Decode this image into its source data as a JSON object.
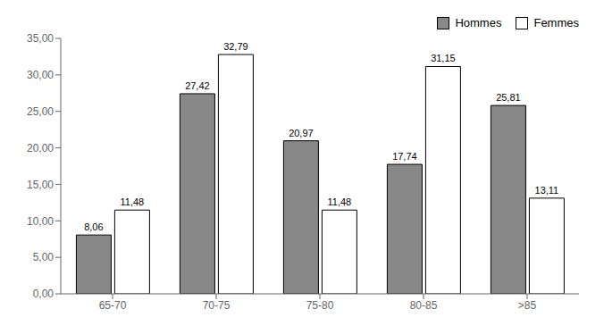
{
  "chart_data": {
    "type": "bar",
    "categories": [
      "65-70",
      "70-75",
      "75-80",
      "80-85",
      ">85"
    ],
    "series": [
      {
        "name": "Hommes",
        "color": "#888888",
        "values": [
          8.06,
          27.42,
          20.97,
          17.74,
          25.81
        ],
        "value_labels": [
          "8,06",
          "27,42",
          "20,97",
          "17,74",
          "25,81"
        ]
      },
      {
        "name": "Femmes",
        "color": "#ffffff",
        "values": [
          11.48,
          32.79,
          11.48,
          31.15,
          13.11
        ],
        "value_labels": [
          "11,48",
          "32,79",
          "11,48",
          "31,15",
          "13,11"
        ]
      }
    ],
    "ylim": [
      0,
      35
    ],
    "yticks": [
      {
        "value": 0,
        "label": "0,00"
      },
      {
        "value": 5,
        "label": "5,00"
      },
      {
        "value": 10,
        "label": "10,00"
      },
      {
        "value": 15,
        "label": "15,00"
      },
      {
        "value": 20,
        "label": "20,00"
      },
      {
        "value": 25,
        "label": "25,00"
      },
      {
        "value": 30,
        "label": "30,00"
      },
      {
        "value": 35,
        "label": "35,00"
      }
    ],
    "grid": false,
    "legend": "upper right",
    "data_labels": true
  }
}
